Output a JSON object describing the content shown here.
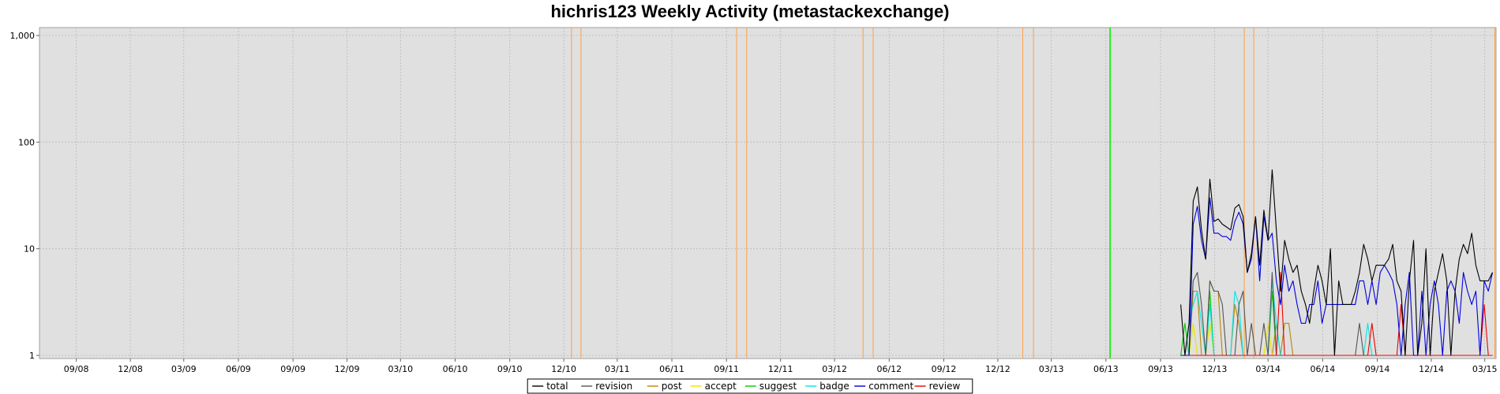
{
  "chart_data": {
    "type": "line",
    "title": "hichris123 Weekly Activity (metastackexchange)",
    "xlabel": "",
    "ylabel": "",
    "yscale": "log",
    "ylim": [
      1,
      1000
    ],
    "xlim": [
      "2008-07-01",
      "2015-03-20"
    ],
    "y_ticks": [
      1,
      10,
      100,
      1000
    ],
    "y_tick_labels": [
      "1",
      "10",
      "100",
      "1,000"
    ],
    "x_ticks": [
      "2008-09-01",
      "2008-12-01",
      "2009-03-01",
      "2009-06-01",
      "2009-09-01",
      "2009-12-01",
      "2010-03-01",
      "2010-06-01",
      "2010-09-01",
      "2010-12-01",
      "2011-03-01",
      "2011-06-01",
      "2011-09-01",
      "2011-12-01",
      "2012-03-01",
      "2012-06-01",
      "2012-09-01",
      "2012-12-01",
      "2013-03-01",
      "2013-06-01",
      "2013-09-01",
      "2013-12-01",
      "2014-03-01",
      "2014-06-01",
      "2014-09-01",
      "2014-12-01",
      "2015-03-01"
    ],
    "x_tick_labels": [
      "09/08",
      "12/08",
      "03/09",
      "06/09",
      "09/09",
      "12/09",
      "03/10",
      "06/10",
      "09/10",
      "12/10",
      "03/11",
      "06/11",
      "09/11",
      "12/11",
      "03/12",
      "06/12",
      "09/12",
      "12/12",
      "03/13",
      "06/13",
      "09/13",
      "12/13",
      "03/14",
      "06/14",
      "09/14",
      "12/14",
      "03/15"
    ],
    "grid": true,
    "legend_position": "bottom-center",
    "background_color": "#e0e0e0",
    "colors": {
      "total": "#000000",
      "revision": "#555555",
      "post": "#b8860b",
      "accept": "#e6e600",
      "suggest": "#00cc00",
      "badge": "#00e5e5",
      "comment": "#0000dd",
      "review": "#ee0000",
      "orange_marker": "#ffa040",
      "green_marker": "#00ee00"
    },
    "vertical_markers": [
      {
        "date": "2010-12-14",
        "color": "orange"
      },
      {
        "date": "2010-12-30",
        "color": "orange"
      },
      {
        "date": "2011-09-18",
        "color": "orange"
      },
      {
        "date": "2011-10-05",
        "color": "orange"
      },
      {
        "date": "2012-04-18",
        "color": "orange"
      },
      {
        "date": "2012-05-05",
        "color": "orange"
      },
      {
        "date": "2013-01-12",
        "color": "orange"
      },
      {
        "date": "2013-01-30",
        "color": "orange"
      },
      {
        "date": "2013-06-08",
        "color": "green"
      },
      {
        "date": "2014-01-20",
        "color": "orange"
      },
      {
        "date": "2014-02-05",
        "color": "orange"
      },
      {
        "date": "2015-03-18",
        "color": "orange"
      }
    ],
    "x": [
      "2013-10-05",
      "2013-10-12",
      "2013-10-19",
      "2013-10-26",
      "2013-11-02",
      "2013-11-09",
      "2013-11-16",
      "2013-11-23",
      "2013-11-30",
      "2013-12-07",
      "2013-12-14",
      "2013-12-21",
      "2013-12-28",
      "2014-01-04",
      "2014-01-11",
      "2014-01-18",
      "2014-01-25",
      "2014-02-01",
      "2014-02-08",
      "2014-02-15",
      "2014-02-22",
      "2014-03-01",
      "2014-03-08",
      "2014-03-15",
      "2014-03-22",
      "2014-03-29",
      "2014-04-05",
      "2014-04-12",
      "2014-04-19",
      "2014-04-26",
      "2014-05-03",
      "2014-05-10",
      "2014-05-17",
      "2014-05-24",
      "2014-05-31",
      "2014-06-07",
      "2014-06-14",
      "2014-06-21",
      "2014-06-28",
      "2014-07-05",
      "2014-07-12",
      "2014-07-19",
      "2014-07-26",
      "2014-08-02",
      "2014-08-09",
      "2014-08-16",
      "2014-08-23",
      "2014-08-30",
      "2014-09-06",
      "2014-09-13",
      "2014-09-20",
      "2014-09-27",
      "2014-10-04",
      "2014-10-11",
      "2014-10-18",
      "2014-10-25",
      "2014-11-01",
      "2014-11-08",
      "2014-11-15",
      "2014-11-22",
      "2014-11-29",
      "2014-12-06",
      "2014-12-13",
      "2014-12-20",
      "2014-12-27",
      "2015-01-03",
      "2015-01-10",
      "2015-01-17",
      "2015-01-24",
      "2015-01-31",
      "2015-02-07",
      "2015-02-14",
      "2015-02-21",
      "2015-02-28",
      "2015-03-07",
      "2015-03-14"
    ],
    "series": [
      {
        "name": "total",
        "values": [
          3,
          1,
          2,
          28,
          38,
          15,
          8,
          45,
          18,
          19,
          17,
          16,
          15,
          24,
          26,
          20,
          6,
          9,
          20,
          7,
          23,
          12,
          55,
          15,
          4,
          12,
          8,
          6,
          7,
          4,
          3,
          2,
          4,
          7,
          5,
          3,
          10,
          1,
          5,
          3,
          3,
          3,
          4,
          6,
          11,
          8,
          5,
          7,
          7,
          7,
          8,
          11,
          5,
          4,
          1,
          5,
          12,
          1,
          2,
          10,
          1,
          4,
          6,
          9,
          5,
          1,
          4,
          8,
          11,
          9,
          14,
          7,
          5,
          5,
          5,
          6
        ]
      },
      {
        "name": "revision",
        "values": [
          1,
          1,
          1,
          5,
          6,
          3,
          1,
          5,
          4,
          4,
          3,
          1,
          1,
          1,
          3,
          4,
          1,
          2,
          1,
          1,
          2,
          1,
          6,
          1,
          1,
          1,
          1,
          1,
          1,
          1,
          1,
          1,
          1,
          1,
          1,
          1,
          1,
          1,
          1,
          1,
          1,
          1,
          1,
          2,
          1,
          1,
          1,
          1,
          1,
          1,
          1,
          1,
          1,
          1,
          1,
          1,
          1,
          1,
          1,
          1,
          1,
          1,
          1,
          1,
          1,
          1,
          1,
          1,
          1,
          1,
          1,
          1,
          1,
          1,
          1,
          1
        ]
      },
      {
        "name": "post",
        "values": [
          1,
          1,
          1,
          4,
          4,
          1,
          1,
          5,
          4,
          4,
          1,
          1,
          1,
          3,
          2,
          1,
          1,
          1,
          1,
          1,
          1,
          1,
          1,
          2,
          1,
          2,
          2,
          1,
          1,
          1,
          1,
          1,
          1,
          1,
          1,
          1,
          1,
          1,
          1,
          1,
          1,
          1,
          1,
          1,
          1,
          1,
          1,
          1,
          1,
          1,
          1,
          1,
          1,
          1,
          1,
          1,
          1,
          1,
          1,
          1,
          1,
          1,
          1,
          1,
          1,
          1,
          1,
          1,
          1,
          1,
          1,
          1,
          1,
          1,
          1,
          1
        ]
      },
      {
        "name": "accept",
        "values": [
          1,
          1,
          1,
          2,
          1,
          1,
          1,
          2,
          1,
          1,
          1,
          1,
          1,
          1,
          1,
          1,
          1,
          1,
          1,
          1,
          1,
          2,
          1,
          1,
          1,
          1,
          1,
          1,
          1,
          1,
          1,
          1,
          1,
          1,
          1,
          1,
          1,
          1,
          1,
          1,
          1,
          1,
          1,
          1,
          1,
          1,
          1,
          1,
          1,
          1,
          1,
          1,
          1,
          1,
          1,
          1,
          1,
          1,
          1,
          1,
          1,
          1,
          1,
          1,
          1,
          1,
          1,
          1,
          1,
          1,
          1,
          1,
          1,
          1,
          1,
          1
        ]
      },
      {
        "name": "suggest",
        "values": [
          1,
          2,
          1,
          1,
          1,
          1,
          1,
          4,
          1,
          1,
          1,
          1,
          1,
          1,
          1,
          1,
          1,
          1,
          1,
          1,
          1,
          1,
          4,
          1,
          1,
          1,
          1,
          1,
          1,
          1,
          1,
          1,
          1,
          1,
          1,
          1,
          1,
          1,
          1,
          1,
          1,
          1,
          1,
          1,
          1,
          1,
          1,
          1,
          1,
          1,
          1,
          1,
          1,
          1,
          1,
          1,
          1,
          1,
          1,
          1,
          1,
          1,
          1,
          1,
          1,
          1,
          1,
          1,
          1,
          1,
          1,
          1,
          1,
          1,
          1,
          1
        ]
      },
      {
        "name": "badge",
        "values": [
          1,
          1,
          2,
          3,
          4,
          2,
          1,
          3,
          1,
          1,
          1,
          1,
          1,
          4,
          3,
          1,
          1,
          1,
          1,
          1,
          1,
          1,
          5,
          2,
          1,
          1,
          1,
          1,
          1,
          1,
          1,
          1,
          1,
          1,
          1,
          1,
          1,
          1,
          1,
          1,
          1,
          1,
          1,
          1,
          1,
          2,
          1,
          1,
          1,
          1,
          1,
          1,
          1,
          1,
          1,
          1,
          1,
          1,
          1,
          1,
          1,
          1,
          1,
          1,
          1,
          1,
          1,
          1,
          1,
          1,
          1,
          1,
          1,
          1,
          1,
          1
        ]
      },
      {
        "name": "comment",
        "values": [
          1,
          1,
          1,
          17,
          25,
          12,
          8,
          30,
          14,
          14,
          13,
          13,
          12,
          18,
          22,
          17,
          6,
          8,
          20,
          5,
          20,
          12,
          14,
          5,
          3,
          7,
          4,
          5,
          3,
          2,
          2,
          3,
          3,
          5,
          2,
          3,
          3,
          3,
          3,
          3,
          3,
          3,
          3,
          5,
          5,
          3,
          5,
          3,
          6,
          7,
          6,
          5,
          3,
          1,
          3,
          6,
          1,
          1,
          4,
          1,
          3,
          5,
          3,
          1,
          4,
          5,
          4,
          2,
          6,
          4,
          3,
          4,
          1,
          5,
          4,
          6
        ]
      },
      {
        "name": "review",
        "values": [
          1,
          1,
          1,
          1,
          1,
          1,
          1,
          1,
          1,
          1,
          1,
          1,
          1,
          1,
          1,
          1,
          1,
          1,
          1,
          1,
          1,
          1,
          1,
          1,
          6,
          1,
          1,
          1,
          1,
          1,
          1,
          1,
          1,
          1,
          1,
          1,
          1,
          1,
          1,
          1,
          1,
          1,
          1,
          1,
          1,
          1,
          2,
          1,
          1,
          1,
          1,
          1,
          1,
          3,
          1,
          1,
          1,
          1,
          1,
          1,
          1,
          1,
          1,
          1,
          1,
          1,
          1,
          1,
          1,
          1,
          1,
          1,
          1,
          3,
          1,
          1
        ]
      }
    ]
  }
}
